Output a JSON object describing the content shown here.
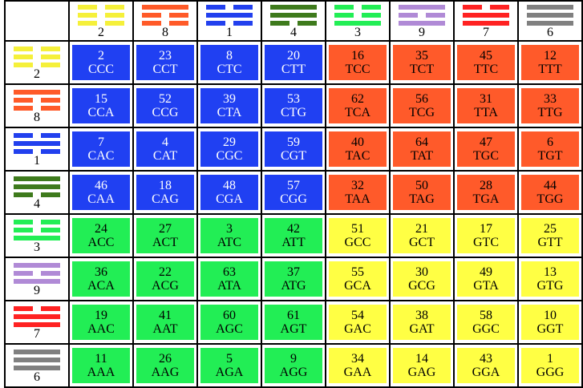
{
  "trigrams": [
    {
      "n": "2",
      "color": "#f5f03a",
      "lines": [
        0,
        0,
        0
      ]
    },
    {
      "n": "8",
      "color": "#ff5a28",
      "lines": [
        1,
        0,
        0
      ]
    },
    {
      "n": "1",
      "color": "#2240ee",
      "lines": [
        0,
        1,
        0
      ]
    },
    {
      "n": "4",
      "color": "#3e7a1c",
      "lines": [
        1,
        1,
        0
      ]
    },
    {
      "n": "3",
      "color": "#22ee55",
      "lines": [
        0,
        0,
        1
      ]
    },
    {
      "n": "9",
      "color": "#b08ad6",
      "lines": [
        1,
        0,
        1
      ]
    },
    {
      "n": "7",
      "color": "#ff2222",
      "lines": [
        0,
        1,
        1
      ]
    },
    {
      "n": "6",
      "color": "#808080",
      "lines": [
        1,
        1,
        1
      ]
    }
  ],
  "cell_colors": {
    "blue": "#2040f2",
    "orange": "#ff5a2a",
    "green": "#22ee55",
    "yellow": "#ffff44"
  },
  "rows": [
    {
      "cells": [
        [
          "2",
          "CCC",
          "blue"
        ],
        [
          "23",
          "CCT",
          "blue"
        ],
        [
          "8",
          "CTC",
          "blue"
        ],
        [
          "20",
          "CTT",
          "blue"
        ],
        [
          "16",
          "TCC",
          "orange"
        ],
        [
          "35",
          "TCT",
          "orange"
        ],
        [
          "45",
          "TTC",
          "orange"
        ],
        [
          "12",
          "TTT",
          "orange"
        ]
      ]
    },
    {
      "cells": [
        [
          "15",
          "CCA",
          "blue"
        ],
        [
          "52",
          "CCG",
          "blue"
        ],
        [
          "39",
          "CTA",
          "blue"
        ],
        [
          "53",
          "CTG",
          "blue"
        ],
        [
          "62",
          "TCA",
          "orange"
        ],
        [
          "56",
          "TCG",
          "orange"
        ],
        [
          "31",
          "TTA",
          "orange"
        ],
        [
          "33",
          "TTG",
          "orange"
        ]
      ]
    },
    {
      "cells": [
        [
          "7",
          "CAC",
          "blue"
        ],
        [
          "4",
          "CAT",
          "blue"
        ],
        [
          "29",
          "CGC",
          "blue"
        ],
        [
          "59",
          "CGT",
          "blue"
        ],
        [
          "40",
          "TAC",
          "orange"
        ],
        [
          "64",
          "TAT",
          "orange"
        ],
        [
          "47",
          "TGC",
          "orange"
        ],
        [
          "6",
          "TGT",
          "orange"
        ]
      ]
    },
    {
      "cells": [
        [
          "46",
          "CAA",
          "blue"
        ],
        [
          "18",
          "CAG",
          "blue"
        ],
        [
          "48",
          "CGA",
          "blue"
        ],
        [
          "57",
          "CGG",
          "blue"
        ],
        [
          "32",
          "TAA",
          "orange"
        ],
        [
          "50",
          "TAG",
          "orange"
        ],
        [
          "28",
          "TGA",
          "orange"
        ],
        [
          "44",
          "TGG",
          "orange"
        ]
      ]
    },
    {
      "cells": [
        [
          "24",
          "ACC",
          "green"
        ],
        [
          "27",
          "ACT",
          "green"
        ],
        [
          "3",
          "ATC",
          "green"
        ],
        [
          "42",
          "ATT",
          "green"
        ],
        [
          "51",
          "GCC",
          "yellow"
        ],
        [
          "21",
          "GCT",
          "yellow"
        ],
        [
          "17",
          "GTC",
          "yellow"
        ],
        [
          "25",
          "GTT",
          "yellow"
        ]
      ]
    },
    {
      "cells": [
        [
          "36",
          "ACA",
          "green"
        ],
        [
          "22",
          "ACG",
          "green"
        ],
        [
          "63",
          "ATA",
          "green"
        ],
        [
          "37",
          "ATG",
          "green"
        ],
        [
          "55",
          "GCA",
          "yellow"
        ],
        [
          "30",
          "GCG",
          "yellow"
        ],
        [
          "49",
          "GTA",
          "yellow"
        ],
        [
          "13",
          "GTG",
          "yellow"
        ]
      ]
    },
    {
      "cells": [
        [
          "19",
          "AAC",
          "green"
        ],
        [
          "41",
          "AAT",
          "green"
        ],
        [
          "60",
          "AGC",
          "green"
        ],
        [
          "61",
          "AGT",
          "green"
        ],
        [
          "54",
          "GAC",
          "yellow"
        ],
        [
          "38",
          "GAT",
          "yellow"
        ],
        [
          "58",
          "GGC",
          "yellow"
        ],
        [
          "10",
          "GGT",
          "yellow"
        ]
      ]
    },
    {
      "cells": [
        [
          "11",
          "AAA",
          "green"
        ],
        [
          "26",
          "AAG",
          "green"
        ],
        [
          "5",
          "AGA",
          "green"
        ],
        [
          "9",
          "AGG",
          "green"
        ],
        [
          "34",
          "GAA",
          "yellow"
        ],
        [
          "14",
          "GAG",
          "yellow"
        ],
        [
          "43",
          "GGA",
          "yellow"
        ],
        [
          "1",
          "GGG",
          "yellow"
        ]
      ]
    }
  ]
}
